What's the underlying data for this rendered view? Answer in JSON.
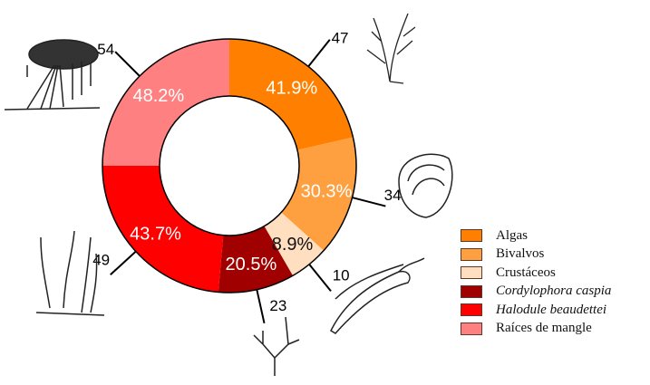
{
  "chart_data": {
    "type": "pie",
    "subtype": "donut",
    "categories": [
      "Algas",
      "Bivalvos",
      "Crustáceos",
      "Cordylophora caspia",
      "Halodule beaudettei",
      "Raíces de mangle"
    ],
    "series": [
      {
        "name": "percent_label",
        "values": [
          41.9,
          30.3,
          8.9,
          20.5,
          43.7,
          48.2
        ]
      },
      {
        "name": "count",
        "values": [
          47,
          34,
          10,
          23,
          49,
          54
        ]
      }
    ],
    "colors": [
      "#ff8000",
      "#ffa040",
      "#ffdfc0",
      "#a00000",
      "#ff0000",
      "#ff8080"
    ],
    "legend_position": "right"
  },
  "segments": [
    {
      "pct": "41.9%",
      "count": "47",
      "color": "#ff8000",
      "start": 0,
      "end": 77,
      "text_color": "#fff"
    },
    {
      "pct": "30.3%",
      "count": "34",
      "color": "#ffa040",
      "start": 77,
      "end": 132,
      "text_color": "#fff"
    },
    {
      "pct": "8.9%",
      "count": "10",
      "color": "#ffdfc0",
      "start": 132,
      "end": 150,
      "text_color": "#111"
    },
    {
      "pct": "20.5%",
      "count": "23",
      "color": "#a00000",
      "start": 150,
      "end": 185,
      "text_color": "#fff"
    },
    {
      "pct": "43.7%",
      "count": "49",
      "color": "#ff0000",
      "start": 185,
      "end": 270,
      "text_color": "#fff"
    },
    {
      "pct": "48.2%",
      "count": "54",
      "color": "#ff8080",
      "start": 270,
      "end": 360,
      "text_color": "#fff"
    }
  ],
  "legend": [
    {
      "label": "Algas",
      "italic": false
    },
    {
      "label": "Bivalvos",
      "italic": false
    },
    {
      "label": "Crustáceos",
      "italic": false
    },
    {
      "label": "Cordylophora caspia",
      "italic": true
    },
    {
      "label": "Halodule beaudettei",
      "italic": true
    },
    {
      "label": "Raíces de mangle",
      "italic": false
    }
  ]
}
